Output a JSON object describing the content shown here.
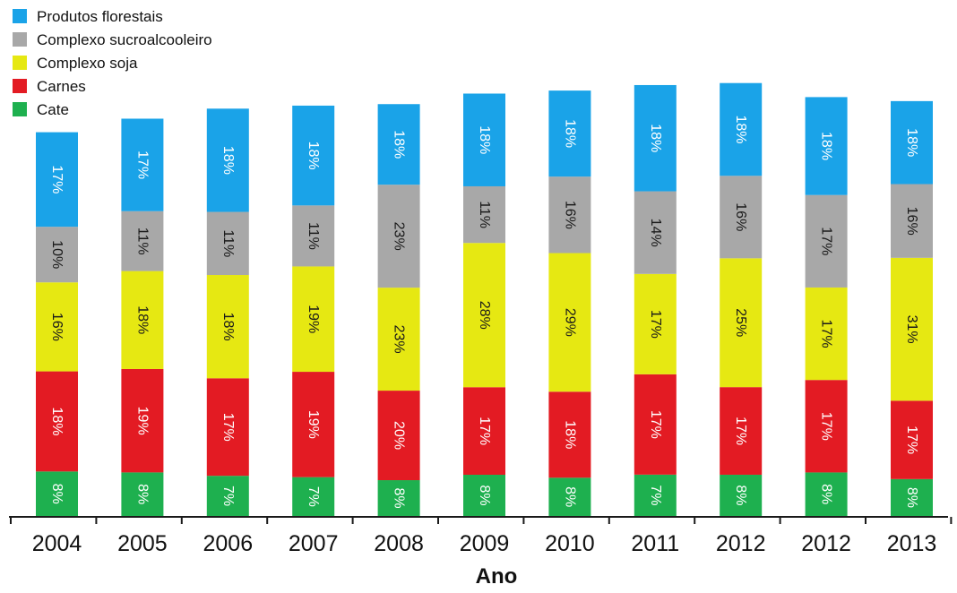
{
  "chart_data": {
    "type": "bar",
    "stacked": true,
    "title": "",
    "xlabel": "Ano",
    "ylabel": "",
    "legend_position": "top-left",
    "grid": false,
    "categories": [
      "2004",
      "2005",
      "2006",
      "2007",
      "2008",
      "2009",
      "2010",
      "2011",
      "2012",
      "2012",
      "2013"
    ],
    "bar_totals_relative": [
      0.765,
      0.792,
      0.812,
      0.818,
      0.821,
      0.842,
      0.848,
      0.859,
      0.863,
      0.835,
      0.827
    ],
    "series": [
      {
        "name": "Cate",
        "color": "#1eb04f",
        "values": [
          8,
          8,
          7,
          7,
          8,
          8,
          8,
          7,
          8,
          8,
          8
        ],
        "labels": [
          "8%",
          "8%",
          "7%",
          "7%",
          "8%",
          "8%",
          "8%",
          "7%",
          "8%",
          "8%",
          "8%"
        ]
      },
      {
        "name": "Carnes",
        "color": "#e31b23",
        "values": [
          18,
          19,
          17,
          19,
          20,
          17,
          18,
          17,
          17,
          17,
          17
        ],
        "labels": [
          "18%",
          "19%",
          "17%",
          "19%",
          "20%",
          "17%",
          "18%",
          "17%",
          "17%",
          "17%",
          "17%"
        ]
      },
      {
        "name": "Complexo soja",
        "color": "#e6e812",
        "values": [
          16,
          18,
          18,
          19,
          23,
          28,
          29,
          17,
          25,
          17,
          31
        ],
        "labels": [
          "16%",
          "18%",
          "18%",
          "19%",
          "23%",
          "28%",
          "29%",
          "17%",
          "25%",
          "17%",
          "31%"
        ]
      },
      {
        "name": "Complexo sucroalcooleiro",
        "color": "#a8a8a8",
        "values": [
          10,
          11,
          11,
          11,
          23,
          11,
          16,
          14,
          16,
          17,
          16
        ],
        "labels": [
          "10%",
          "11%",
          "11%",
          "11%",
          "23%",
          "11%",
          "16%",
          "14%",
          "16%",
          "17%",
          "16%"
        ]
      },
      {
        "name": "Produtos florestais",
        "color": "#1aa3e8",
        "values": [
          17,
          17,
          18,
          18,
          18,
          18,
          18,
          18,
          18,
          18,
          18
        ],
        "labels": [
          "17%",
          "17%",
          "18%",
          "18%",
          "18%",
          "18%",
          "18%",
          "18%",
          "18%",
          "18%",
          "18%"
        ]
      }
    ],
    "legend_order": [
      "Produtos florestais",
      "Complexo sucroalcooleiro",
      "Complexo soja",
      "Carnes",
      "Cate"
    ]
  }
}
